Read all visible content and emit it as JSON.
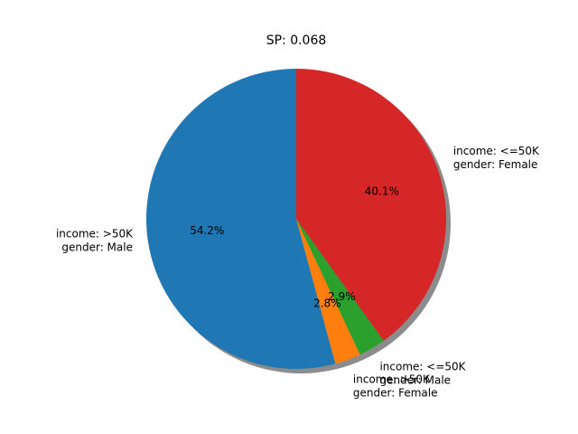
{
  "chart_data": {
    "type": "pie",
    "title": "SP: 0.068",
    "shadow": true,
    "start_angle_deg": 90,
    "direction": "counterclockwise",
    "slices": [
      {
        "label_lines": [
          "income: >50K",
          "gender: Male"
        ],
        "value": 54.2,
        "pct_label": "54.2%",
        "color": "#1f77b4"
      },
      {
        "label_lines": [
          "income: >50K",
          "gender: Female"
        ],
        "value": 2.8,
        "pct_label": "2.8%",
        "color": "#ff7f0e"
      },
      {
        "label_lines": [
          "income: <=50K",
          "gender: Male"
        ],
        "value": 2.9,
        "pct_label": "2.9%",
        "color": "#2ca02c"
      },
      {
        "label_lines": [
          "income: <=50K",
          "gender: Female"
        ],
        "value": 40.1,
        "pct_label": "40.1%",
        "color": "#d62728"
      }
    ]
  }
}
